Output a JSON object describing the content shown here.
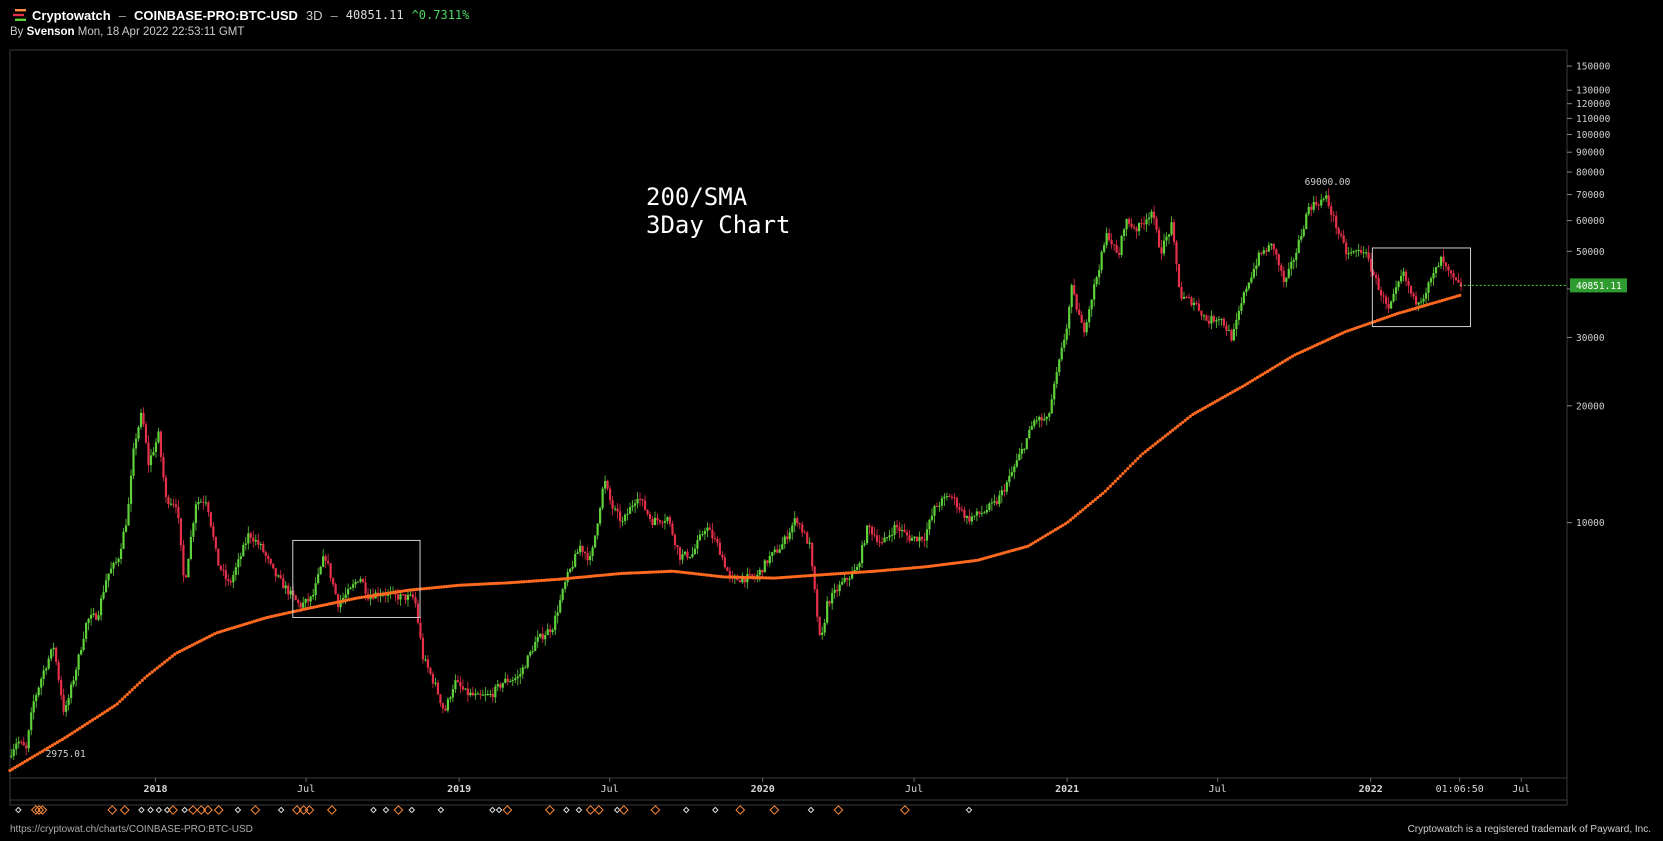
{
  "header": {
    "brand": "Cryptowatch",
    "separator": "–",
    "pair": "COINBASE-PRO:BTC-USD",
    "timeframe": "3D",
    "separator2": "–",
    "last_price": "40851.11",
    "change": "^0.7311%"
  },
  "byline": {
    "prefix": "By",
    "author": "Svenson",
    "timestamp": "Mon, 18 Apr 2022 22:53:11 GMT"
  },
  "footer": {
    "url": "https://cryptowat.ch/charts/COINBASE-PRO:BTC-USD",
    "trademark": "Cryptowatch is a registered trademark of Payward, Inc."
  },
  "colors": {
    "up": "#5ed13b",
    "down": "#e5304a",
    "sma": "#ff6a1f",
    "marker_orange": "#ff8c3a",
    "marker_white": "#e0e0e0",
    "price_tag": "#2e9c2e"
  },
  "chart_data": {
    "type": "candlestick",
    "title": "",
    "annotation": [
      "200/SMA",
      "3Day Chart"
    ],
    "y_scale": "log",
    "ylim": [
      2200,
      165000
    ],
    "y_ticks": [
      {
        "value": 150000,
        "label": "150000"
      },
      {
        "value": 130000,
        "label": "130000"
      },
      {
        "value": 120000,
        "label": "120000"
      },
      {
        "value": 110000,
        "label": "110000"
      },
      {
        "value": 100000,
        "label": "100000"
      },
      {
        "value": 90000,
        "label": "90000"
      },
      {
        "value": 80000,
        "label": "80000"
      },
      {
        "value": 70000,
        "label": "70000"
      },
      {
        "value": 60000,
        "label": "60000"
      },
      {
        "value": 50000,
        "label": "50000"
      },
      {
        "value": 40000,
        "label": "40000"
      },
      {
        "value": 30000,
        "label": "30000"
      },
      {
        "value": 20000,
        "label": "20000"
      },
      {
        "value": 10000,
        "label": "10000"
      }
    ],
    "x_range": [
      "2017-07-10",
      "2022-08-25"
    ],
    "x_ticks": [
      {
        "date": "2018-01-01",
        "label": "2018"
      },
      {
        "date": "2018-07-01",
        "label": "Jul"
      },
      {
        "date": "2019-01-01",
        "label": "2019"
      },
      {
        "date": "2019-07-01",
        "label": "Jul"
      },
      {
        "date": "2020-01-01",
        "label": "2020"
      },
      {
        "date": "2020-07-01",
        "label": "Jul"
      },
      {
        "date": "2021-01-01",
        "label": "2021"
      },
      {
        "date": "2021-07-01",
        "label": "Jul"
      },
      {
        "date": "2022-01-01",
        "label": "2022"
      },
      {
        "date": "2022-04-18",
        "label": "01:06:50"
      },
      {
        "date": "2022-07-01",
        "label": "Jul"
      }
    ],
    "price_path": [
      [
        "2017-07-10",
        2500
      ],
      [
        "2017-07-20",
        2750
      ],
      [
        "2017-07-31",
        2600
      ],
      [
        "2017-08-08",
        3400
      ],
      [
        "2017-08-20",
        4100
      ],
      [
        "2017-09-02",
        4800
      ],
      [
        "2017-09-15",
        3200
      ],
      [
        "2017-09-30",
        4300
      ],
      [
        "2017-10-12",
        5600
      ],
      [
        "2017-10-25",
        5800
      ],
      [
        "2017-11-05",
        7300
      ],
      [
        "2017-11-18",
        8000
      ],
      [
        "2017-11-30",
        10500
      ],
      [
        "2017-12-08",
        16000
      ],
      [
        "2017-12-17",
        19200
      ],
      [
        "2017-12-25",
        14200
      ],
      [
        "2018-01-06",
        16800
      ],
      [
        "2018-01-15",
        11500
      ],
      [
        "2018-01-28",
        11200
      ],
      [
        "2018-02-06",
        6900
      ],
      [
        "2018-02-20",
        11300
      ],
      [
        "2018-03-05",
        11500
      ],
      [
        "2018-03-18",
        7900
      ],
      [
        "2018-04-01",
        6900
      ],
      [
        "2018-04-12",
        7900
      ],
      [
        "2018-04-25",
        9400
      ],
      [
        "2018-05-10",
        8600
      ],
      [
        "2018-05-25",
        7400
      ],
      [
        "2018-06-10",
        6700
      ],
      [
        "2018-06-25",
        6100
      ],
      [
        "2018-07-10",
        6400
      ],
      [
        "2018-07-25",
        8300
      ],
      [
        "2018-08-10",
        6200
      ],
      [
        "2018-08-25",
        6700
      ],
      [
        "2018-09-05",
        7300
      ],
      [
        "2018-09-15",
        6500
      ],
      [
        "2018-10-01",
        6600
      ],
      [
        "2018-10-20",
        6450
      ],
      [
        "2018-11-10",
        6400
      ],
      [
        "2018-11-20",
        4500
      ],
      [
        "2018-12-05",
        3800
      ],
      [
        "2018-12-16",
        3250
      ],
      [
        "2018-12-28",
        3900
      ],
      [
        "2019-01-10",
        3650
      ],
      [
        "2019-01-25",
        3550
      ],
      [
        "2019-02-10",
        3600
      ],
      [
        "2019-02-25",
        3900
      ],
      [
        "2019-03-15",
        4000
      ],
      [
        "2019-04-05",
        4950
      ],
      [
        "2019-04-25",
        5400
      ],
      [
        "2019-05-12",
        7200
      ],
      [
        "2019-05-28",
        8700
      ],
      [
        "2019-06-10",
        8000
      ],
      [
        "2019-06-26",
        12900
      ],
      [
        "2019-07-05",
        11000
      ],
      [
        "2019-07-18",
        10000
      ],
      [
        "2019-08-05",
        11800
      ],
      [
        "2019-08-22",
        10100
      ],
      [
        "2019-09-10",
        10300
      ],
      [
        "2019-09-25",
        8200
      ],
      [
        "2019-10-10",
        8300
      ],
      [
        "2019-10-26",
        9800
      ],
      [
        "2019-11-10",
        8700
      ],
      [
        "2019-11-25",
        7100
      ],
      [
        "2019-12-10",
        7200
      ],
      [
        "2019-12-25",
        7200
      ],
      [
        "2020-01-10",
        8100
      ],
      [
        "2020-01-25",
        8700
      ],
      [
        "2020-02-12",
        10300
      ],
      [
        "2020-02-28",
        8700
      ],
      [
        "2020-03-12",
        4800
      ],
      [
        "2020-03-20",
        6200
      ],
      [
        "2020-04-05",
        6900
      ],
      [
        "2020-04-25",
        7600
      ],
      [
        "2020-05-08",
        9800
      ],
      [
        "2020-05-25",
        8800
      ],
      [
        "2020-06-10",
        9800
      ],
      [
        "2020-06-28",
        9100
      ],
      [
        "2020-07-15",
        9200
      ],
      [
        "2020-07-28",
        11000
      ],
      [
        "2020-08-15",
        11800
      ],
      [
        "2020-09-05",
        10200
      ],
      [
        "2020-09-25",
        10700
      ],
      [
        "2020-10-10",
        11300
      ],
      [
        "2020-10-25",
        13000
      ],
      [
        "2020-11-10",
        15500
      ],
      [
        "2020-11-25",
        18500
      ],
      [
        "2020-12-10",
        18300
      ],
      [
        "2020-12-20",
        23500
      ],
      [
        "2021-01-02",
        32000
      ],
      [
        "2021-01-08",
        40000
      ],
      [
        "2021-01-22",
        31000
      ],
      [
        "2021-02-08",
        44000
      ],
      [
        "2021-02-20",
        56000
      ],
      [
        "2021-03-05",
        48000
      ],
      [
        "2021-03-13",
        60000
      ],
      [
        "2021-03-28",
        57000
      ],
      [
        "2021-04-14",
        63500
      ],
      [
        "2021-04-25",
        50000
      ],
      [
        "2021-05-08",
        58000
      ],
      [
        "2021-05-19",
        38000
      ],
      [
        "2021-06-05",
        37000
      ],
      [
        "2021-06-20",
        33000
      ],
      [
        "2021-07-05",
        34000
      ],
      [
        "2021-07-20",
        29800
      ],
      [
        "2021-08-05",
        40000
      ],
      [
        "2021-08-22",
        49000
      ],
      [
        "2021-09-07",
        52000
      ],
      [
        "2021-09-21",
        41000
      ],
      [
        "2021-10-05",
        50000
      ],
      [
        "2021-10-20",
        65000
      ],
      [
        "2021-11-10",
        68500
      ],
      [
        "2021-11-26",
        55000
      ],
      [
        "2021-12-05",
        49000
      ],
      [
        "2021-12-25",
        50500
      ],
      [
        "2022-01-10",
        41500
      ],
      [
        "2022-01-24",
        35000
      ],
      [
        "2022-02-10",
        44000
      ],
      [
        "2022-02-24",
        37000
      ],
      [
        "2022-03-07",
        38500
      ],
      [
        "2022-03-28",
        47500
      ],
      [
        "2022-04-07",
        43500
      ],
      [
        "2022-04-18",
        40851
      ]
    ],
    "sma_200": [
      [
        "2017-07-10",
        2300
      ],
      [
        "2017-09-15",
        2800
      ],
      [
        "2017-11-15",
        3400
      ],
      [
        "2017-12-20",
        4000
      ],
      [
        "2018-01-25",
        4600
      ],
      [
        "2018-03-15",
        5200
      ],
      [
        "2018-05-15",
        5700
      ],
      [
        "2018-07-01",
        6000
      ],
      [
        "2018-09-01",
        6400
      ],
      [
        "2018-11-01",
        6700
      ],
      [
        "2019-01-01",
        6900
      ],
      [
        "2019-03-01",
        7000
      ],
      [
        "2019-05-01",
        7150
      ],
      [
        "2019-07-15",
        7400
      ],
      [
        "2019-09-15",
        7500
      ],
      [
        "2019-11-15",
        7250
      ],
      [
        "2020-01-15",
        7200
      ],
      [
        "2020-03-15",
        7350
      ],
      [
        "2020-05-15",
        7500
      ],
      [
        "2020-07-15",
        7700
      ],
      [
        "2020-09-15",
        8000
      ],
      [
        "2020-11-15",
        8700
      ],
      [
        "2021-01-01",
        10000
      ],
      [
        "2021-02-15",
        12000
      ],
      [
        "2021-04-01",
        15000
      ],
      [
        "2021-06-01",
        19000
      ],
      [
        "2021-08-01",
        22500
      ],
      [
        "2021-10-01",
        27000
      ],
      [
        "2021-12-01",
        31000
      ],
      [
        "2022-02-01",
        34500
      ],
      [
        "2022-04-18",
        38500
      ]
    ],
    "price_labels": [
      {
        "date": "2017-09-15",
        "value": 2975.01,
        "label": "2975.01",
        "position": "below"
      },
      {
        "date": "2021-11-10",
        "value": 69000,
        "label": "69000.00",
        "position": "above"
      }
    ],
    "last_price_tag": {
      "value": 40851.11,
      "label": "40851.11"
    },
    "boxes": [
      {
        "from": "2018-06-15",
        "to": "2018-11-15",
        "top": 9000,
        "bottom": 5700
      },
      {
        "from": "2022-01-03",
        "to": "2022-05-01",
        "top": 51000,
        "bottom": 32000
      }
    ],
    "event_markers": [
      {
        "date": "2017-07-20",
        "kind": "white"
      },
      {
        "date": "2017-08-10",
        "kind": "orange"
      },
      {
        "date": "2017-08-14",
        "kind": "orange"
      },
      {
        "date": "2017-08-18",
        "kind": "orange"
      },
      {
        "date": "2017-11-10",
        "kind": "orange"
      },
      {
        "date": "2017-11-25",
        "kind": "orange"
      },
      {
        "date": "2017-12-15",
        "kind": "white"
      },
      {
        "date": "2017-12-26",
        "kind": "white"
      },
      {
        "date": "2018-01-05",
        "kind": "white"
      },
      {
        "date": "2018-01-15",
        "kind": "white"
      },
      {
        "date": "2018-01-22",
        "kind": "orange"
      },
      {
        "date": "2018-02-05",
        "kind": "white"
      },
      {
        "date": "2018-02-15",
        "kind": "orange"
      },
      {
        "date": "2018-02-25",
        "kind": "orange"
      },
      {
        "date": "2018-03-05",
        "kind": "orange"
      },
      {
        "date": "2018-03-18",
        "kind": "orange"
      },
      {
        "date": "2018-04-10",
        "kind": "white"
      },
      {
        "date": "2018-05-01",
        "kind": "orange"
      },
      {
        "date": "2018-06-01",
        "kind": "white"
      },
      {
        "date": "2018-06-20",
        "kind": "orange"
      },
      {
        "date": "2018-06-28",
        "kind": "orange"
      },
      {
        "date": "2018-07-05",
        "kind": "orange"
      },
      {
        "date": "2018-08-01",
        "kind": "orange"
      },
      {
        "date": "2018-09-20",
        "kind": "white"
      },
      {
        "date": "2018-10-05",
        "kind": "white"
      },
      {
        "date": "2018-10-20",
        "kind": "orange"
      },
      {
        "date": "2018-11-05",
        "kind": "white"
      },
      {
        "date": "2018-12-10",
        "kind": "white"
      },
      {
        "date": "2019-02-10",
        "kind": "white"
      },
      {
        "date": "2019-02-18",
        "kind": "white"
      },
      {
        "date": "2019-02-28",
        "kind": "orange"
      },
      {
        "date": "2019-04-20",
        "kind": "orange"
      },
      {
        "date": "2019-05-10",
        "kind": "white"
      },
      {
        "date": "2019-05-25",
        "kind": "white"
      },
      {
        "date": "2019-06-08",
        "kind": "orange"
      },
      {
        "date": "2019-06-18",
        "kind": "orange"
      },
      {
        "date": "2019-07-10",
        "kind": "white"
      },
      {
        "date": "2019-07-18",
        "kind": "orange"
      },
      {
        "date": "2019-08-25",
        "kind": "orange"
      },
      {
        "date": "2019-10-01",
        "kind": "white"
      },
      {
        "date": "2019-11-05",
        "kind": "white"
      },
      {
        "date": "2019-12-05",
        "kind": "orange"
      },
      {
        "date": "2020-01-15",
        "kind": "orange"
      },
      {
        "date": "2020-02-28",
        "kind": "white"
      },
      {
        "date": "2020-04-01",
        "kind": "orange"
      },
      {
        "date": "2020-06-20",
        "kind": "orange"
      },
      {
        "date": "2020-09-05",
        "kind": "white"
      }
    ]
  }
}
